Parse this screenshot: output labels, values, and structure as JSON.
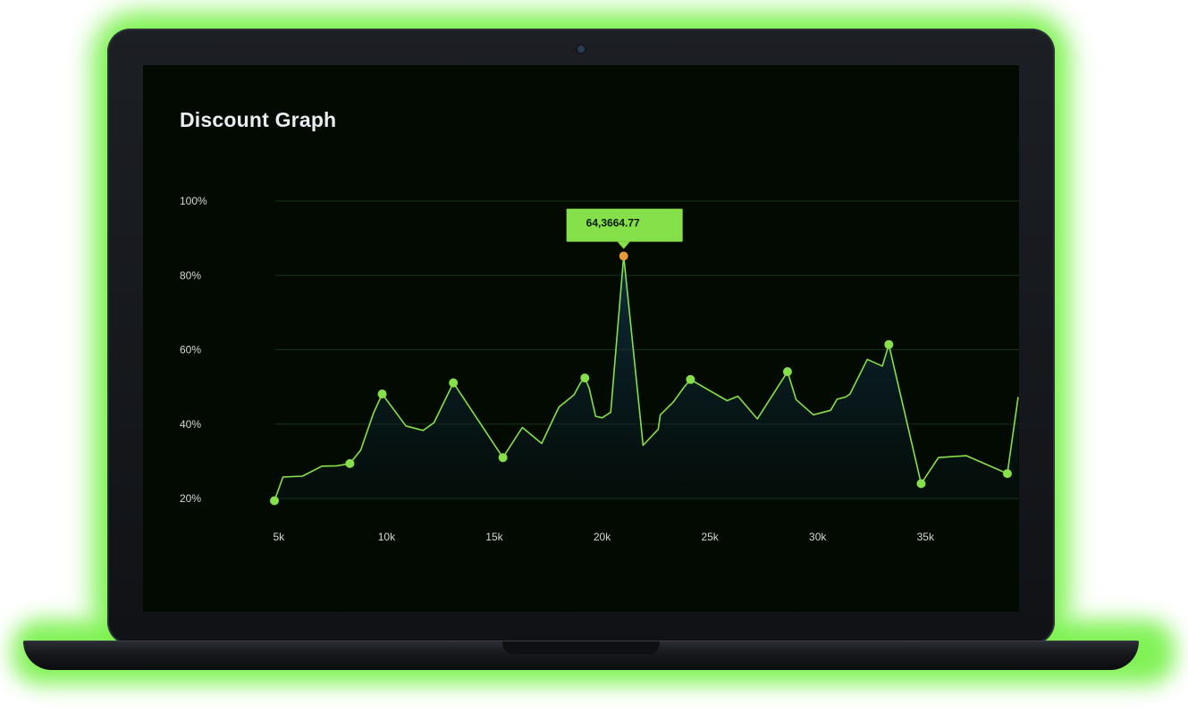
{
  "chart_data": {
    "type": "area",
    "title": "Discount Graph",
    "xlabel": "",
    "ylabel": "",
    "x_ticks": [
      "5k",
      "10k",
      "15k",
      "20k",
      "25k",
      "30k",
      "35k"
    ],
    "x_tick_values": [
      5000,
      10000,
      15000,
      20000,
      25000,
      30000,
      35000
    ],
    "y_ticks": [
      "20%",
      "40%",
      "60%",
      "80%",
      "100%"
    ],
    "y_tick_values": [
      20,
      40,
      60,
      80,
      100
    ],
    "xlim": [
      4800,
      39300
    ],
    "ylim": [
      20,
      100
    ],
    "grid": true,
    "colors": {
      "line": "#86e04a",
      "highlight": "#e89a3c",
      "tooltip_bg": "#86e04a"
    },
    "series": [
      {
        "x": [
          4800,
          5200,
          6100,
          7000,
          7700,
          8300,
          8800,
          9400,
          9800,
          10900,
          11700,
          12200,
          13100,
          15400,
          16300,
          17200,
          17700,
          18000,
          18700,
          19000,
          19200,
          19400,
          19700,
          20000,
          20400,
          21000,
          21900,
          22600,
          22700,
          23300,
          23800,
          24100,
          25800,
          26300,
          27200,
          28600,
          29000,
          29800,
          30600,
          30900,
          31300,
          31500,
          32300,
          33000,
          33300,
          34800,
          35600,
          36900,
          38800,
          39300
        ],
        "y": [
          19.4,
          25.8,
          26.0,
          28.7,
          28.8,
          29.4,
          33.0,
          43.0,
          48.1,
          39.5,
          38.3,
          40.4,
          51.1,
          31.0,
          39.1,
          34.8,
          41.0,
          44.6,
          47.9,
          51.1,
          52.4,
          49.7,
          42.1,
          41.7,
          43.2,
          85.2,
          34.3,
          38.6,
          42.5,
          45.9,
          49.9,
          52.0,
          46.3,
          47.5,
          41.4,
          54.1,
          46.6,
          42.5,
          43.7,
          46.7,
          47.3,
          48.1,
          57.4,
          55.6,
          61.4,
          24.0,
          31.0,
          31.5,
          26.7,
          47.3
        ]
      }
    ],
    "markers": [
      {
        "x": 4800,
        "y": 19.4
      },
      {
        "x": 8300,
        "y": 29.4
      },
      {
        "x": 9800,
        "y": 48.1
      },
      {
        "x": 13100,
        "y": 51.1
      },
      {
        "x": 15400,
        "y": 31.0
      },
      {
        "x": 19200,
        "y": 52.4
      },
      {
        "x": 24100,
        "y": 52.0
      },
      {
        "x": 28600,
        "y": 54.1
      },
      {
        "x": 33300,
        "y": 61.4
      },
      {
        "x": 34800,
        "y": 24.0
      },
      {
        "x": 38800,
        "y": 26.7
      }
    ],
    "highlight": {
      "x": 21000,
      "y": 85.2,
      "label": "64,3664.77"
    }
  }
}
